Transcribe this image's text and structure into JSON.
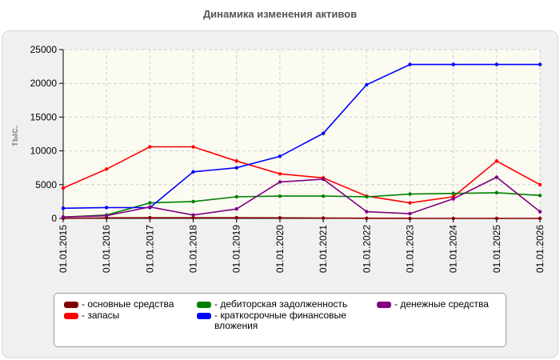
{
  "chart_data": {
    "type": "line",
    "title": "Динамика изменения активов",
    "ylabel": "тыс.",
    "xlabel": "",
    "x": [
      "01.01.2015",
      "01.01.2016",
      "01.01.2017",
      "01.01.2018",
      "01.01.2019",
      "01.01.2020",
      "01.01.2021",
      "01.01.2022",
      "01.01.2023",
      "01.01.2024",
      "01.01.2025",
      "01.01.2026"
    ],
    "ylim": [
      0,
      25000
    ],
    "yticks": [
      0,
      5000,
      10000,
      15000,
      20000,
      25000
    ],
    "grid": true,
    "legend_position": "bottom",
    "series": [
      {
        "name": "основные средства",
        "color": "#800000",
        "values": [
          0,
          80,
          100,
          100,
          100,
          80,
          50,
          20,
          0,
          0,
          0,
          0
        ]
      },
      {
        "name": "запасы",
        "color": "#ff0000",
        "values": [
          4500,
          7300,
          10600,
          10600,
          8500,
          6600,
          6000,
          3300,
          2300,
          3200,
          8500,
          5000
        ]
      },
      {
        "name": "дебиторская задолженность",
        "color": "#008000",
        "values": [
          200,
          500,
          2300,
          2500,
          3200,
          3300,
          3300,
          3200,
          3600,
          3700,
          3800,
          3400
        ]
      },
      {
        "name": "краткосрочные финансовые\nвложения",
        "color": "#0000ff",
        "values": [
          1500,
          1600,
          1600,
          6900,
          7500,
          9200,
          12600,
          19800,
          22800,
          22800,
          22800,
          22800
        ]
      },
      {
        "name": "денежные средства",
        "color": "#800080",
        "values": [
          200,
          400,
          1700,
          500,
          1400,
          5400,
          5800,
          1000,
          700,
          2900,
          6100,
          1000
        ]
      }
    ]
  }
}
